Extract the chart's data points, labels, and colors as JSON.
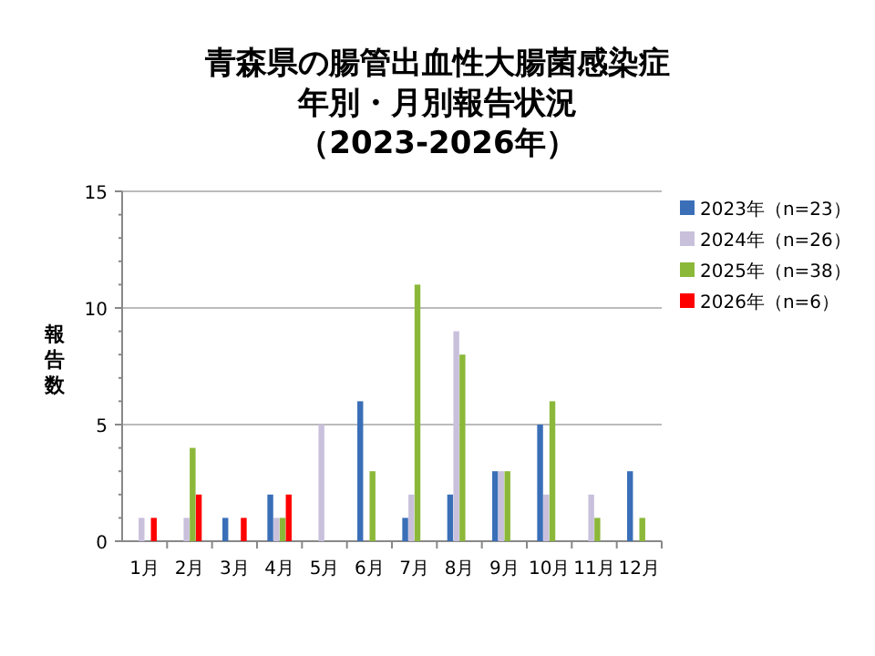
{
  "chart_data": {
    "type": "bar",
    "title": "青森県の腸管出血性大腸菌感染症年別・月別報告状況",
    "subtitle": "（2023-2026年）",
    "ylabel": "報告数",
    "categories": [
      "1月",
      "2月",
      "3月",
      "4月",
      "5月",
      "6月",
      "7月",
      "8月",
      "9月",
      "10月",
      "11月",
      "12月"
    ],
    "series": [
      {
        "name": "2023年（n=23）",
        "color": "#3a6fb8",
        "values": [
          0,
          0,
          1,
          2,
          0,
          6,
          1,
          2,
          3,
          5,
          0,
          3
        ]
      },
      {
        "name": "2024年（n=26）",
        "color": "#c9c0dc",
        "values": [
          1,
          1,
          0,
          1,
          5,
          0,
          2,
          9,
          3,
          2,
          2,
          0
        ]
      },
      {
        "name": "2025年（n=38）",
        "color": "#8cb83a",
        "values": [
          0,
          4,
          0,
          1,
          0,
          3,
          11,
          8,
          3,
          6,
          1,
          1
        ]
      },
      {
        "name": "2026年（n=6）",
        "color": "#ff0000",
        "values": [
          1,
          2,
          1,
          2,
          null,
          null,
          null,
          null,
          null,
          null,
          null,
          null
        ]
      }
    ],
    "ylim": [
      0,
      15
    ],
    "yticks": [
      0,
      5,
      10,
      15
    ],
    "grid": "y",
    "legend": "right"
  }
}
